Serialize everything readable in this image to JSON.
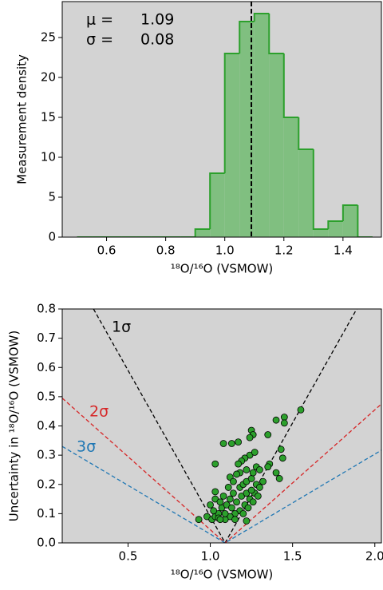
{
  "chart_data": [
    {
      "type": "histogram",
      "y_label": "Measurement density",
      "x_label": "¹⁸O/¹⁶O (VSMOW)",
      "bins": [
        0.5,
        0.55,
        0.6,
        0.65,
        0.7,
        0.75,
        0.8,
        0.85,
        0.9,
        0.95,
        1.0,
        1.05,
        1.1,
        1.15,
        1.2,
        1.25,
        1.3,
        1.35,
        1.4,
        1.45,
        1.5
      ],
      "counts": [
        0,
        0,
        0,
        0,
        0,
        0,
        0,
        0,
        1,
        8,
        23,
        27,
        28,
        23,
        15,
        11,
        1,
        2,
        4,
        0
      ],
      "color": "#80bf80",
      "edge_color": "#2ca02c",
      "mean": 1.09,
      "std": 0.08,
      "mean_label": "μ =",
      "std_label": "σ =",
      "xlim": [
        0.45,
        1.53
      ],
      "ylim": [
        0,
        29.5
      ],
      "xticks": [
        0.6,
        0.8,
        {
          "value": 1,
          "label": "1.0"
        },
        1.2,
        1.4
      ],
      "yticks": [
        0,
        5,
        10,
        15,
        20,
        25
      ]
    },
    {
      "type": "scatter",
      "y_label": "Uncertainty in ¹⁸O/¹⁶O (VSMOW)",
      "x_label": "¹⁸O/¹⁶O (VSMOW)",
      "color": "#2ca02c",
      "x": [
        1.55,
        1.45,
        1.45,
        1.4,
        1.35,
        1.43,
        1.44,
        1.4,
        1.42,
        1.25,
        1.26,
        1.24,
        1.17,
        1.13,
        1.08,
        1.03,
        1.36,
        1.35,
        1.28,
        1.22,
        1.18,
        1.16,
        1.12,
        0.93,
        0.98,
        1.01,
        1.03,
        1.05,
        1.07,
        1.1,
        1.12,
        1.14,
        1.18,
        1.2,
        1.22,
        1.25,
        1.28,
        1.3,
        1.27,
        1.24,
        1.21,
        1.18,
        1.15,
        1.12,
        1.09,
        1.05,
        1.02,
        1.0,
        1.03,
        1.06,
        1.09,
        1.13,
        1.16,
        1.19,
        1.22,
        1.25,
        1.29,
        1.32,
        1.26,
        1.24,
        1.27,
        1.21,
        1.19,
        1.3,
        1.03,
        1.11,
        1.14,
        1.08,
        1.2,
        1.23,
        1.06,
        1.15,
        1.26,
        1.17,
        1.22
      ],
      "y": [
        0.455,
        0.43,
        0.41,
        0.42,
        0.37,
        0.32,
        0.29,
        0.24,
        0.22,
        0.385,
        0.37,
        0.36,
        0.345,
        0.34,
        0.34,
        0.27,
        0.27,
        0.26,
        0.26,
        0.25,
        0.24,
        0.235,
        0.225,
        0.08,
        0.09,
        0.08,
        0.09,
        0.1,
        0.12,
        0.13,
        0.15,
        0.17,
        0.19,
        0.2,
        0.21,
        0.22,
        0.2,
        0.19,
        0.17,
        0.15,
        0.13,
        0.11,
        0.1,
        0.09,
        0.08,
        0.085,
        0.11,
        0.13,
        0.15,
        0.14,
        0.1,
        0.12,
        0.14,
        0.16,
        0.17,
        0.18,
        0.16,
        0.21,
        0.24,
        0.3,
        0.31,
        0.29,
        0.28,
        0.25,
        0.175,
        0.19,
        0.21,
        0.16,
        0.1,
        0.12,
        0.08,
        0.08,
        0.14,
        0.27,
        0.075
      ],
      "lines": [
        {
          "name": "1σ",
          "color": "#000000",
          "x": [
            0.29,
            1.09,
            1.89
          ],
          "y": [
            0.8,
            0,
            0.8
          ]
        },
        {
          "name": "2σ",
          "color": "#d62728",
          "x": [
            0.1,
            1.09,
            2.04
          ],
          "y": [
            0.495,
            0,
            0.475
          ]
        },
        {
          "name": "3σ",
          "color": "#1f77b4",
          "x": [
            0.1,
            1.09,
            2.04
          ],
          "y": [
            0.33,
            0,
            0.317
          ]
        }
      ],
      "xlim": [
        0.1,
        2.04
      ],
      "ylim": [
        0,
        0.8
      ],
      "xticks": [
        0.5,
        {
          "value": 1,
          "label": "1.0"
        },
        1.5,
        {
          "value": 2,
          "label": "2.0"
        }
      ],
      "yticks": [
        {
          "value": 0,
          "label": "0.0"
        },
        0.1,
        0.2,
        0.3,
        0.4,
        0.5,
        0.6,
        0.7,
        0.8
      ]
    }
  ]
}
